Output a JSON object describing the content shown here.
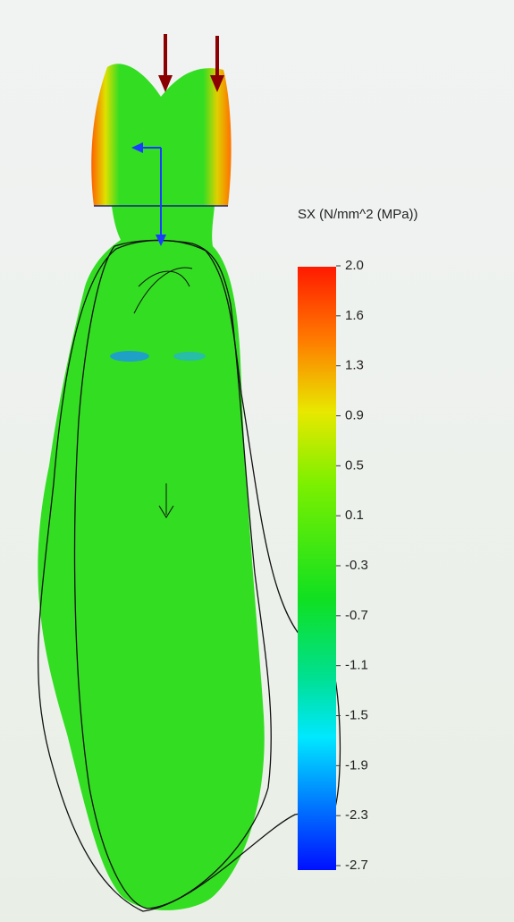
{
  "legend": {
    "title": "SX (N/mm^2 (MPa))",
    "labels": [
      "2.0",
      "1.6",
      "1.3",
      "0.9",
      "0.5",
      "0.1",
      "-0.3",
      "-0.7",
      "-1.1",
      "-1.5",
      "-1.9",
      "-2.3",
      "-2.7"
    ]
  }
}
